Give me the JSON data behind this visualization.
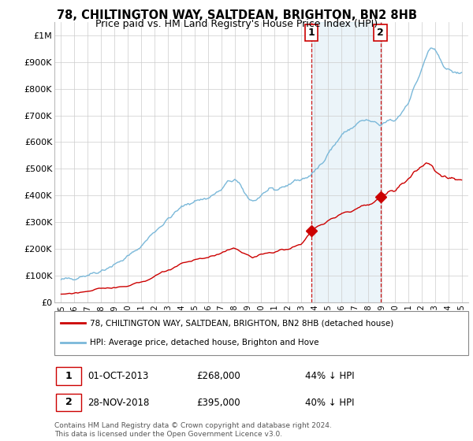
{
  "title": "78, CHILTINGTON WAY, SALTDEAN, BRIGHTON, BN2 8HB",
  "subtitle": "Price paid vs. HM Land Registry's House Price Index (HPI)",
  "title_fontsize": 10.5,
  "subtitle_fontsize": 9,
  "background_color": "#ffffff",
  "plot_bg_color": "#ffffff",
  "grid_color": "#cccccc",
  "ylim": [
    0,
    1050000
  ],
  "yticks": [
    0,
    100000,
    200000,
    300000,
    400000,
    500000,
    600000,
    700000,
    800000,
    900000,
    1000000
  ],
  "ytick_labels": [
    "£0",
    "£100K",
    "£200K",
    "£300K",
    "£400K",
    "£500K",
    "£600K",
    "£700K",
    "£800K",
    "£900K",
    "£1M"
  ],
  "hpi_color": "#7ab8d9",
  "sale_color": "#cc0000",
  "dashed_line_color": "#cc0000",
  "marker1_x": 2013.75,
  "marker1_y": 268000,
  "marker2_x": 2018.92,
  "marker2_y": 395000,
  "sale1_date": "01-OCT-2013",
  "sale1_price": "£268,000",
  "sale1_hpi": "44% ↓ HPI",
  "sale2_date": "28-NOV-2018",
  "sale2_price": "£395,000",
  "sale2_hpi": "40% ↓ HPI",
  "legend_label1": "78, CHILTINGTON WAY, SALTDEAN, BRIGHTON, BN2 8HB (detached house)",
  "legend_label2": "HPI: Average price, detached house, Brighton and Hove",
  "footer": "Contains HM Land Registry data © Crown copyright and database right 2024.\nThis data is licensed under the Open Government Licence v3.0.",
  "shade_x1": 2013.75,
  "shade_x2": 2018.92,
  "xlim": [
    1994.5,
    2025.5
  ],
  "xtick_years": [
    1995,
    1996,
    1997,
    1998,
    1999,
    2000,
    2001,
    2002,
    2003,
    2004,
    2005,
    2006,
    2007,
    2008,
    2009,
    2010,
    2011,
    2012,
    2013,
    2014,
    2015,
    2016,
    2017,
    2018,
    2019,
    2020,
    2021,
    2022,
    2023,
    2024,
    2025
  ]
}
